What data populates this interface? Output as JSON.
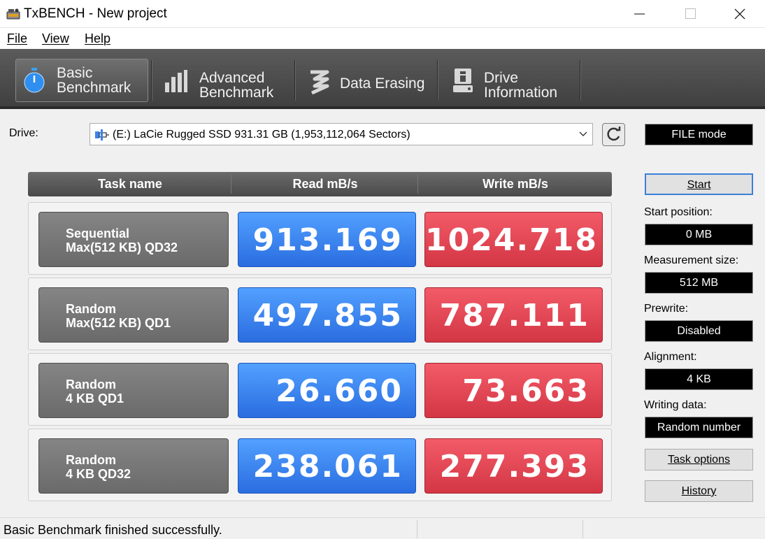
{
  "window": {
    "title": "TxBENCH - New project"
  },
  "menu": {
    "items": [
      "File",
      "View",
      "Help"
    ]
  },
  "tabs": [
    {
      "line1": "Basic",
      "line2": "Benchmark",
      "icon": "stopwatch-icon",
      "selected": true
    },
    {
      "line1": "Advanced",
      "line2": "Benchmark",
      "icon": "bar-chart-icon",
      "selected": false
    },
    {
      "line1": "Data Erasing",
      "line2": "",
      "icon": "eraser-icon",
      "selected": false
    },
    {
      "line1": "Drive",
      "line2": "Information",
      "icon": "drive-info-icon",
      "selected": false
    }
  ],
  "drive": {
    "label": "Drive:",
    "selected": "(E:) LaCie Rugged SSD  931.31 GB (1,953,112,064 Sectors)",
    "mode": "FILE mode"
  },
  "table": {
    "headers": [
      "Task name",
      "Read mB/s",
      "Write mB/s"
    ],
    "rows": [
      {
        "name1": "Sequential",
        "name2": "Max(512 KB) QD32",
        "read": "913.169",
        "write": "1024.718"
      },
      {
        "name1": "Random",
        "name2": "Max(512 KB) QD1",
        "read": "497.855",
        "write": "787.111"
      },
      {
        "name1": "Random",
        "name2": "4 KB QD1",
        "read": "26.660",
        "write": "73.663"
      },
      {
        "name1": "Random",
        "name2": "4 KB QD32",
        "read": "238.061",
        "write": "277.393"
      }
    ]
  },
  "settings": {
    "start_label": "Start",
    "start_position_label": "Start position:",
    "start_position": "0 MB",
    "measurement_size_label": "Measurement size:",
    "measurement_size": "512 MB",
    "prewrite_label": "Prewrite:",
    "prewrite": "Disabled",
    "alignment_label": "Alignment:",
    "alignment": "4 KB",
    "writing_data_label": "Writing data:",
    "writing_data": "Random number",
    "task_options_label": "Task options",
    "history_label": "History"
  },
  "status": {
    "text": "Basic Benchmark finished successfully."
  },
  "colors": {
    "read": "#3a84f0",
    "write": "#e54654",
    "tabbar": "#4a4a4a"
  }
}
